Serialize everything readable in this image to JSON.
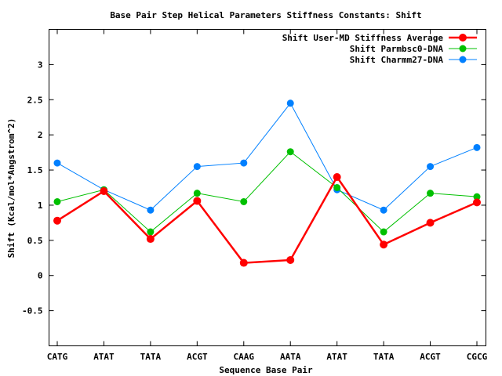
{
  "chart_data": {
    "type": "line",
    "title": "Base Pair Step Helical Parameters Stiffness Constants: Shift",
    "xlabel": "Sequence Base Pair",
    "ylabel": "Shift (Kcal/mol*Angstrom^2)",
    "categories": [
      "CATG",
      "ATAT",
      "TATA",
      "ACGT",
      "CAAG",
      "AATA",
      "ATAT",
      "TATA",
      "ACGT",
      "CGCG"
    ],
    "ylim": [
      -1,
      3.5
    ],
    "yticks": [
      -0.5,
      0,
      0.5,
      1,
      1.5,
      2,
      2.5,
      3
    ],
    "ytick_labels": [
      "-0.5",
      "0",
      "0.5",
      "1",
      "1.5",
      "2",
      "2.5",
      "3"
    ],
    "grid": false,
    "legend_position": "top-right",
    "series": [
      {
        "name": "Shift User-MD Stiffness Average",
        "color": "#ff0000",
        "values": [
          0.78,
          1.2,
          0.52,
          1.06,
          0.18,
          0.22,
          1.4,
          0.44,
          0.75,
          1.04
        ]
      },
      {
        "name": "Shift Parmbsc0-DNA",
        "color": "#00c000",
        "values": [
          1.05,
          1.22,
          0.62,
          1.17,
          1.05,
          1.76,
          1.25,
          0.62,
          1.17,
          1.12
        ]
      },
      {
        "name": "Shift Charmm27-DNA",
        "color": "#0080ff",
        "values": [
          1.6,
          1.22,
          0.93,
          1.55,
          1.6,
          2.45,
          1.22,
          0.93,
          1.55,
          1.82
        ]
      }
    ]
  }
}
